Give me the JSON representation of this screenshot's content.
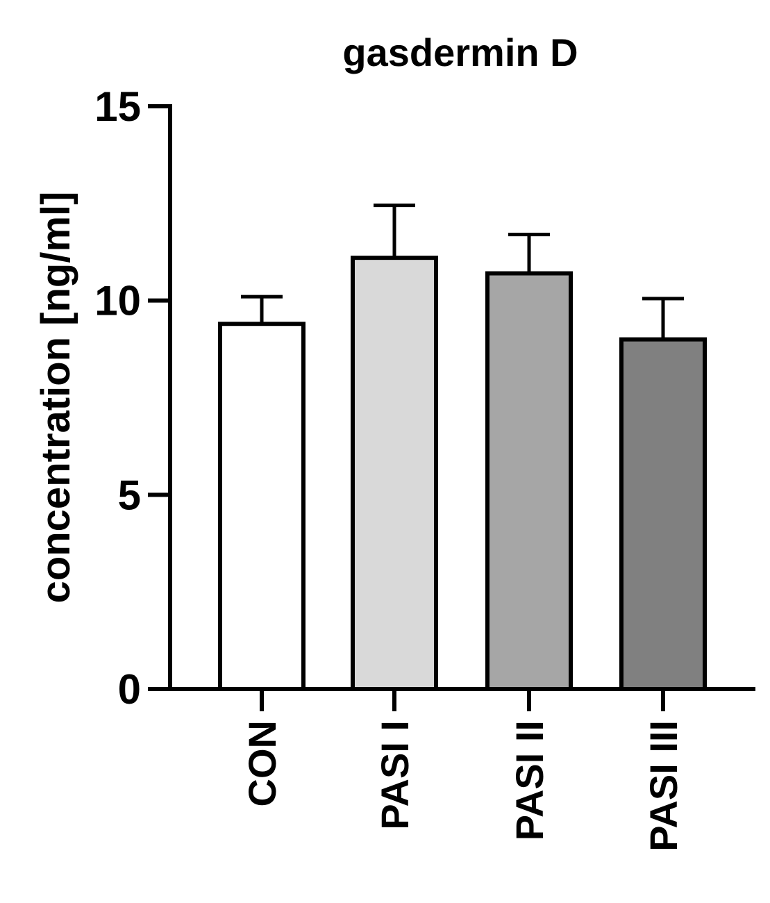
{
  "chart_data": {
    "type": "bar",
    "title": "gasdermin D",
    "ylabel": "concentration [ng/ml]",
    "xlabel": "",
    "categories": [
      "CON",
      "PASI I",
      "PASI II",
      "PASI III"
    ],
    "values": [
      9.4,
      11.1,
      10.7,
      9.0
    ],
    "errors": [
      0.7,
      1.35,
      1.0,
      1.05
    ],
    "bar_colors": [
      "#ffffff",
      "#d9d9d9",
      "#a6a6a6",
      "#808080"
    ],
    "ylim": [
      0,
      15
    ],
    "yticks": [
      0,
      5,
      10,
      15
    ],
    "grid": false,
    "legend": "none"
  }
}
